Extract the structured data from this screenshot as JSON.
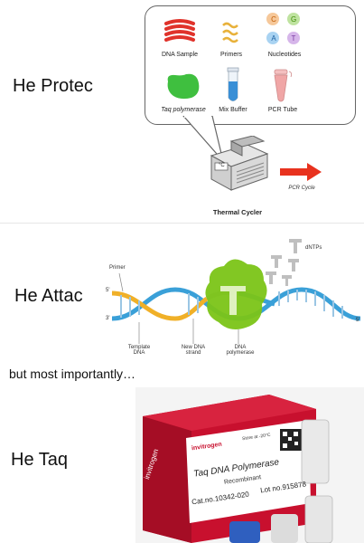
{
  "panels": [
    {
      "caption": "He Protec",
      "ingredients": [
        {
          "label": "DNA Sample",
          "icon": "dna-sample-icon"
        },
        {
          "label": "Primers",
          "icon": "primers-icon"
        },
        {
          "label": "Nucleotides",
          "icon": "nucleotides-icon"
        },
        {
          "label": "Taq polymerase",
          "icon": "taq-polymerase-icon"
        },
        {
          "label": "Mix Buffer",
          "icon": "mix-buffer-tube-icon"
        },
        {
          "label": "PCR Tube",
          "icon": "pcr-tube-icon"
        }
      ],
      "nucleotide_letters": [
        "C",
        "G",
        "A",
        "T"
      ],
      "machine_label": "Thermal Cycler",
      "machine_display": "°C",
      "arrow_label": "PCR Cycle"
    },
    {
      "caption": "He Attac",
      "labels": {
        "primer": "Primer",
        "five_prime_left": "5'",
        "three_prime_left": "3'",
        "template": "Template DNA",
        "new_strand": "New DNA strand",
        "polymerase": "DNA polymerase",
        "dntps": "dNTPs",
        "five_prime_right": "5'"
      }
    },
    {
      "caption": "but most importantly…"
    },
    {
      "caption": "He Taq",
      "box": {
        "brand": "invitrogen",
        "product_line1": "Taq DNA Polymerase",
        "product_line2": "Recombinant",
        "cat_no": "Cat.no.10342-020",
        "lot_no": "Lot no.915878",
        "storage": "Store at -20°C",
        "side_brand": "invitrogen"
      }
    }
  ],
  "colors": {
    "dna_red": "#e0332b",
    "primer_orange": "#e8b13a",
    "taq_green": "#3fbf3f",
    "buffer_blue": "#3a8fd6",
    "pcr_pink": "#f0a6a6",
    "helix_blue": "#3aa0d8",
    "helix_yellow": "#f0b028",
    "polymerase_green": "#7bc417",
    "box_red": "#c8102e",
    "arrow_red": "#e8321e"
  }
}
